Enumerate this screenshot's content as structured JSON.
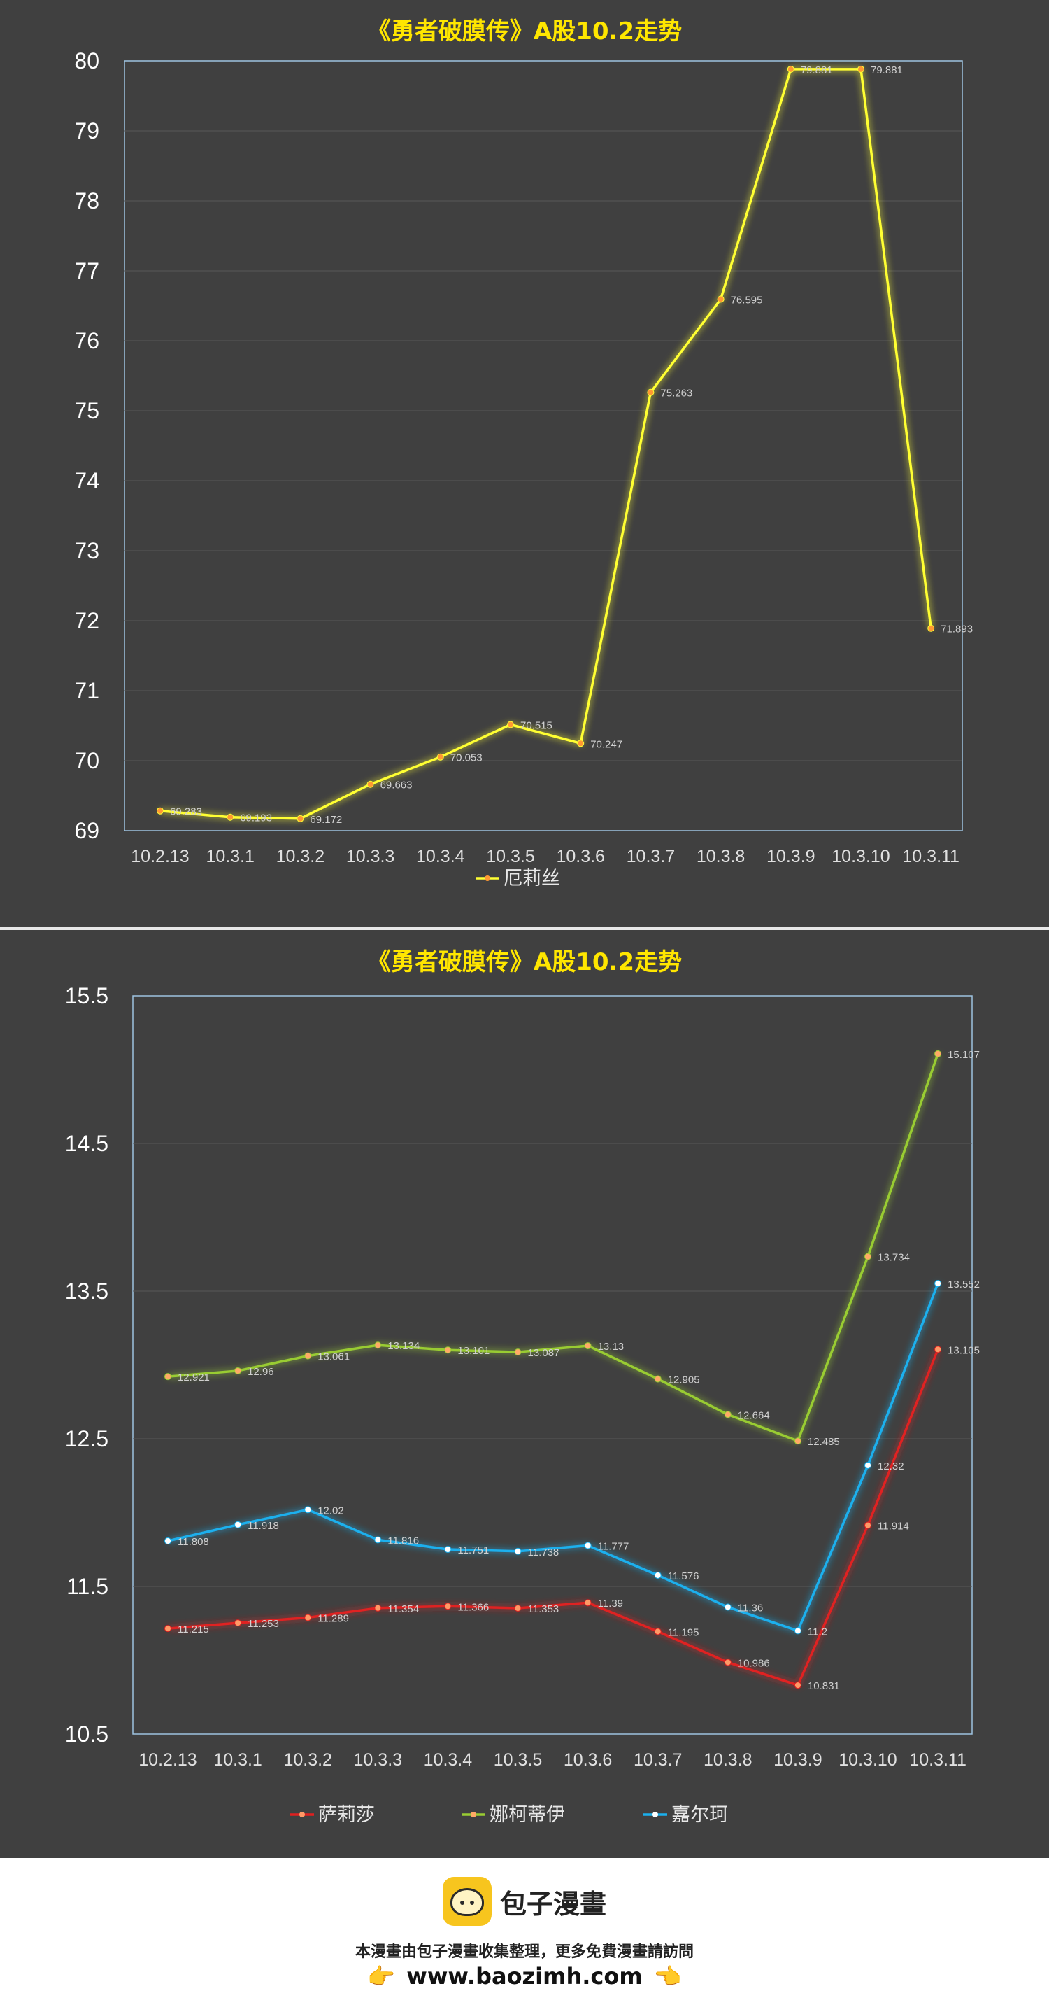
{
  "chart_data": [
    {
      "type": "line",
      "title": "《勇者破膜传》A股10.2走势",
      "categories": [
        "10.2.13",
        "10.3.1",
        "10.3.2",
        "10.3.3",
        "10.3.4",
        "10.3.5",
        "10.3.6",
        "10.3.7",
        "10.3.8",
        "10.3.9",
        "10.3.10",
        "10.3.11"
      ],
      "series": [
        {
          "name": "厄莉丝",
          "color": "#ffff33",
          "marker_color": "#ff9933",
          "values": [
            69.283,
            69.193,
            69.172,
            69.663,
            70.053,
            70.515,
            70.247,
            75.263,
            76.595,
            79.881,
            79.881,
            71.893
          ],
          "labels": [
            "69.283",
            "69.193",
            "69.172",
            "69.663",
            "70.053",
            "70.515",
            "70.247",
            "75.263",
            "76.595",
            "79.881",
            "79.881",
            "71.893"
          ]
        }
      ],
      "ylim": [
        69,
        80
      ],
      "yticks": [
        "69",
        "70",
        "71",
        "72",
        "73",
        "74",
        "75",
        "76",
        "77",
        "78",
        "79",
        "80"
      ],
      "grid": true,
      "legend": "bottom"
    },
    {
      "type": "line",
      "title": "《勇者破膜传》A股10.2走势",
      "categories": [
        "10.2.13",
        "10.3.1",
        "10.3.2",
        "10.3.3",
        "10.3.4",
        "10.3.5",
        "10.3.6",
        "10.3.7",
        "10.3.8",
        "10.3.9",
        "10.3.10",
        "10.3.11"
      ],
      "series": [
        {
          "name": "萨莉莎",
          "color": "#e02020",
          "marker_color": "#ff9966",
          "values": [
            11.215,
            11.253,
            11.289,
            11.354,
            11.366,
            11.353,
            11.39,
            11.195,
            10.986,
            10.831,
            11.914,
            13.105
          ],
          "labels": [
            "11.215",
            "11.253",
            "11.289",
            "11.354",
            "11.366",
            "11.353",
            "11.39",
            "11.195",
            "10.986",
            "10.831",
            "11.914",
            "13.105"
          ]
        },
        {
          "name": "娜柯蒂伊",
          "color": "#99cc33",
          "marker_color": "#ffaa66",
          "values": [
            12.921,
            12.96,
            13.061,
            13.134,
            13.101,
            13.087,
            13.13,
            12.905,
            12.664,
            12.485,
            13.734,
            15.107
          ],
          "labels": [
            "12.921",
            "12.96",
            "13.061",
            "13.134",
            "13.101",
            "13.087",
            "13.13",
            "12.905",
            "12.664",
            "12.485",
            "13.734",
            "15.107"
          ]
        },
        {
          "name": "嘉尔珂",
          "color": "#1ab0ee",
          "marker_color": "#ffffff",
          "values": [
            11.808,
            11.918,
            12.02,
            11.816,
            11.751,
            11.738,
            11.777,
            11.576,
            11.36,
            11.2,
            12.32,
            13.552
          ],
          "labels": [
            "11.808",
            "11.918",
            "12.02",
            "11.816",
            "11.751",
            "11.738",
            "11.777",
            "11.576",
            "11.36",
            "11.2",
            "12.32",
            "13.552"
          ]
        }
      ],
      "ylim": [
        10.5,
        15.5
      ],
      "yticks": [
        "10.5",
        "11.5",
        "12.5",
        "13.5",
        "14.5",
        "15.5"
      ],
      "ytick_values": [
        10.5,
        11.5,
        12.5,
        13.5,
        14.5,
        15.5
      ],
      "grid": true,
      "legend": "bottom"
    }
  ],
  "footer": {
    "brand": "包子漫畫",
    "note": "本漫畫由包子漫畫收集整理，更多免費漫畫請訪問",
    "url": "www.baozimh.com"
  }
}
